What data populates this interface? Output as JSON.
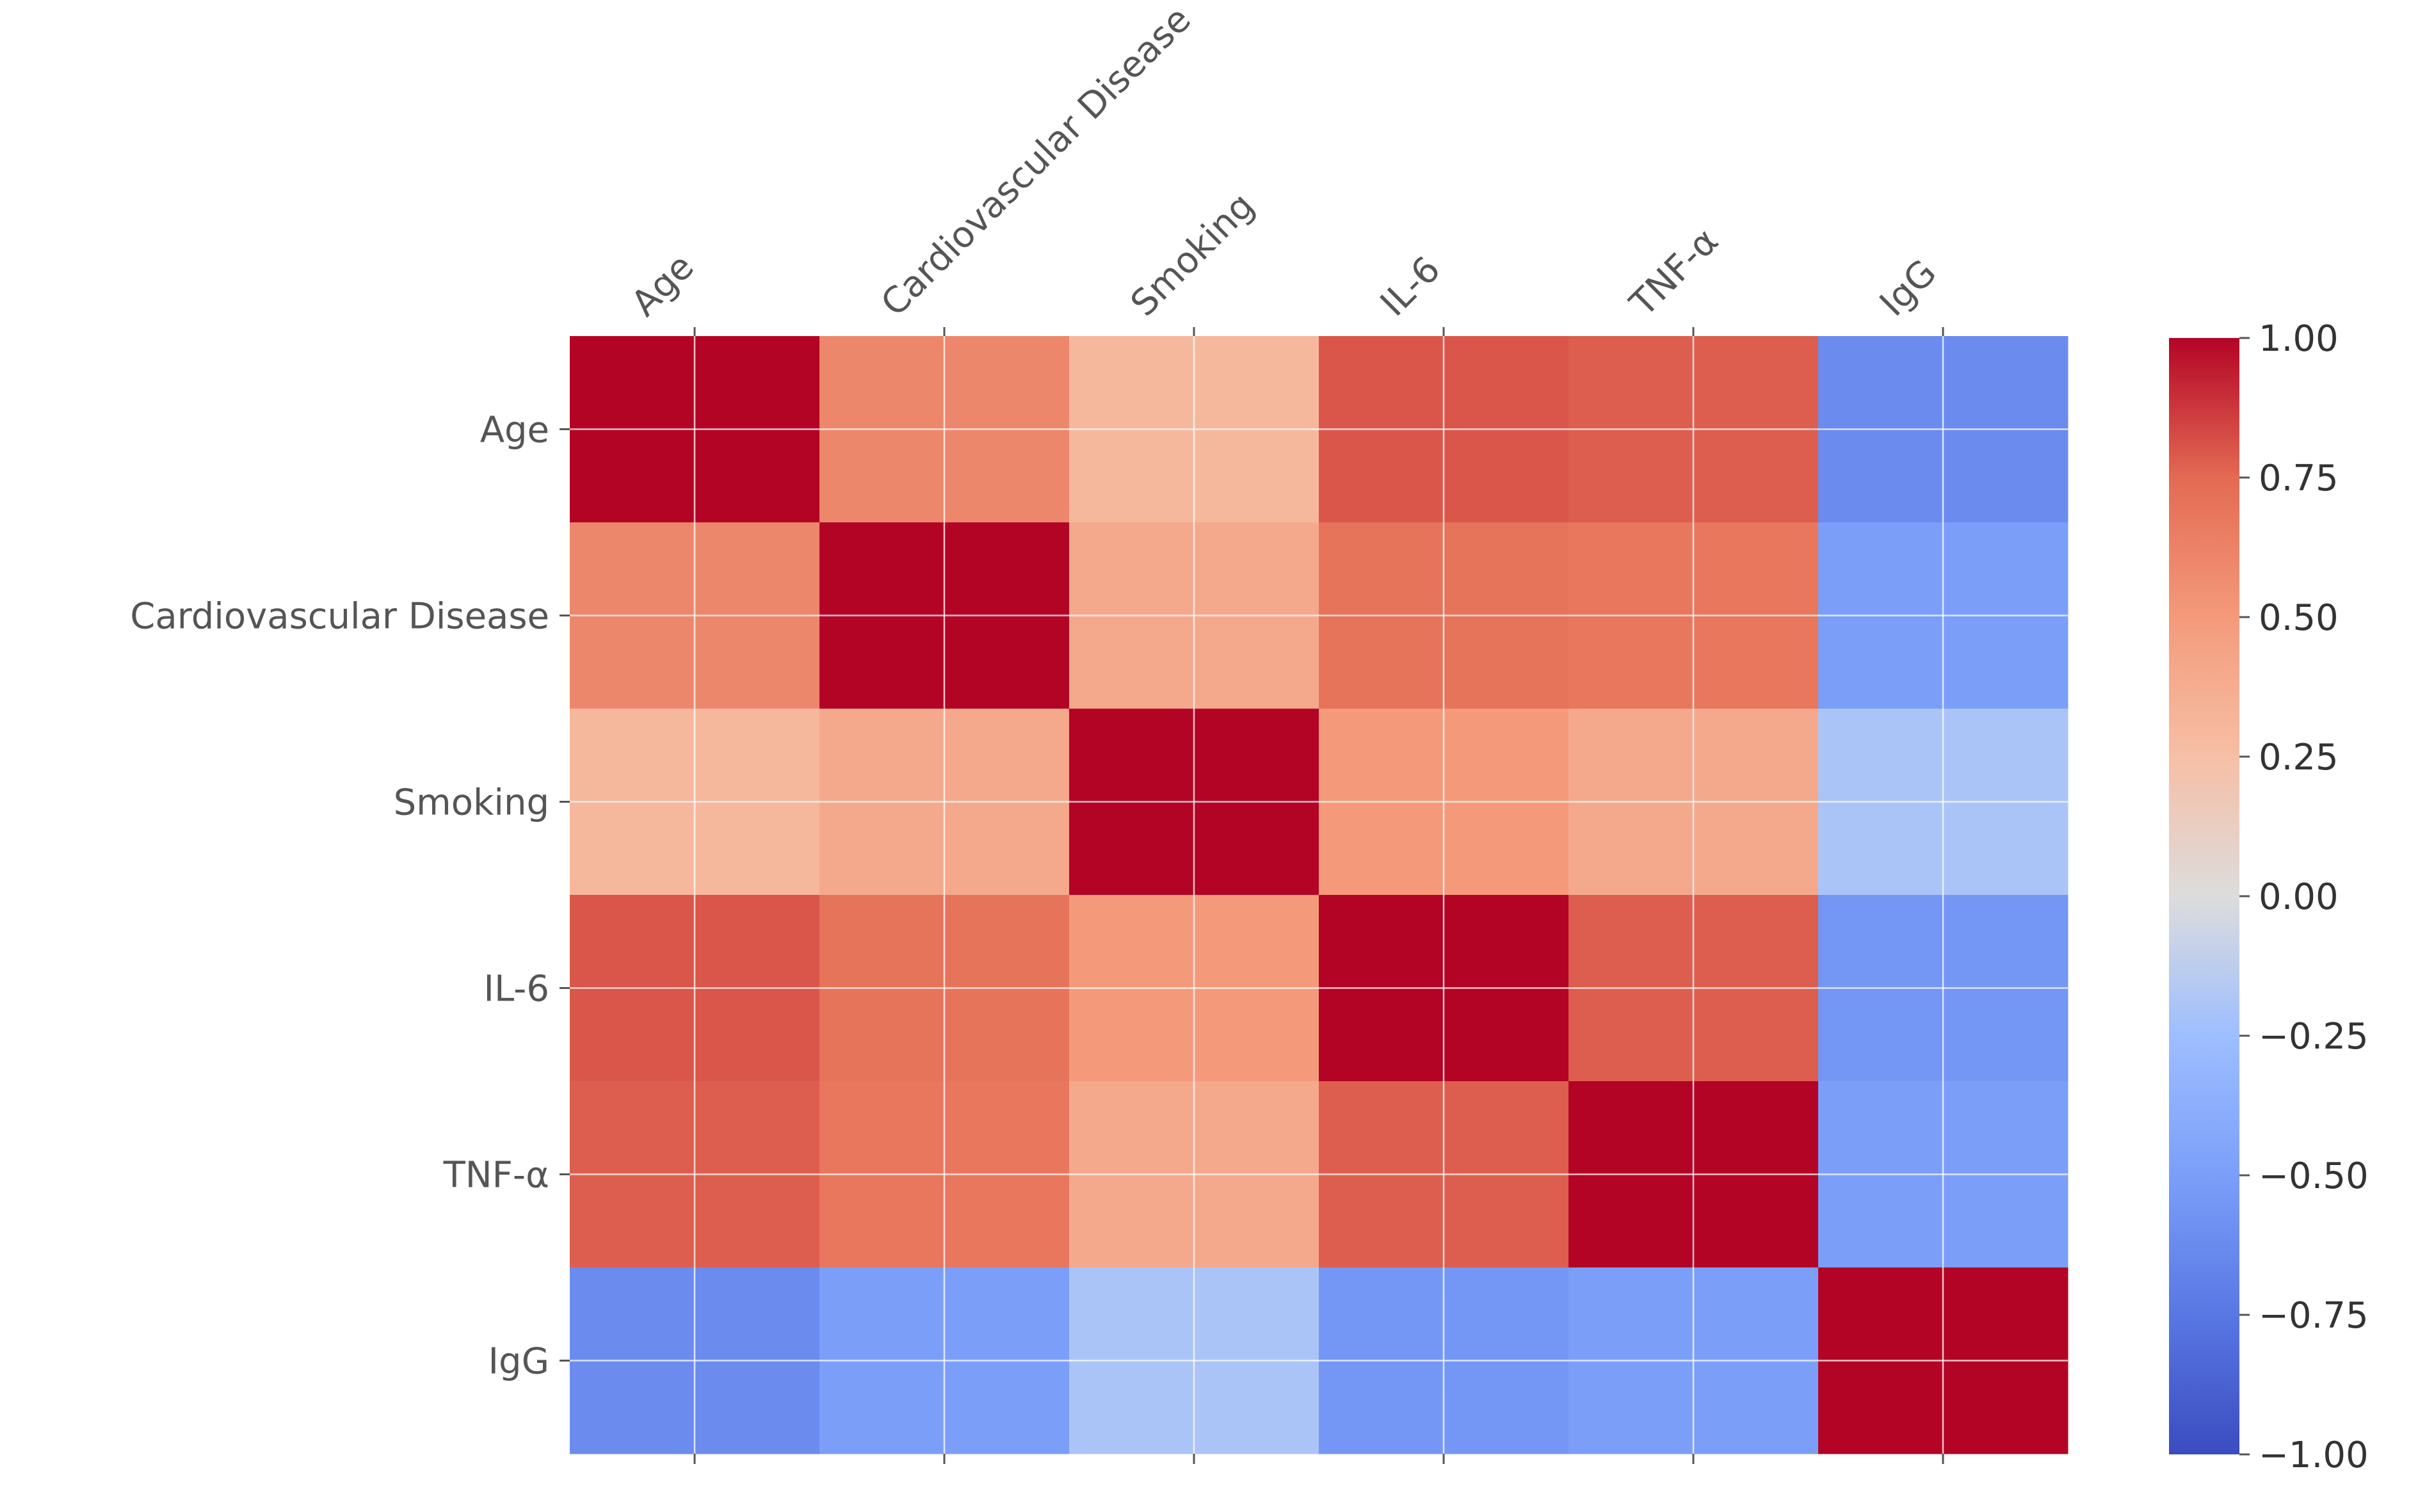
{
  "chart_data": {
    "type": "heatmap",
    "title": "",
    "xlabel": "",
    "ylabel": "",
    "row_labels": [
      "Age",
      "Cardiovascular Disease",
      "Smoking",
      "IL-6",
      "TNF-α",
      "IgG"
    ],
    "col_labels": [
      "Age",
      "Cardiovascular Disease",
      "Smoking",
      "IL-6",
      "TNF-α",
      "IgG"
    ],
    "values": [
      [
        1.0,
        0.6,
        0.3,
        0.8,
        0.78,
        -0.62
      ],
      [
        0.6,
        1.0,
        0.4,
        0.7,
        0.68,
        -0.5
      ],
      [
        0.3,
        0.4,
        1.0,
        0.5,
        0.4,
        -0.2
      ],
      [
        0.8,
        0.7,
        0.5,
        1.0,
        0.78,
        -0.55
      ],
      [
        0.78,
        0.68,
        0.4,
        0.78,
        1.0,
        -0.5
      ],
      [
        -0.62,
        -0.5,
        -0.2,
        -0.55,
        -0.5,
        1.0
      ]
    ],
    "vmin": -1.0,
    "vmax": 1.0,
    "colormap": "coolwarm",
    "grid": true,
    "colorbar": {
      "ticks": [
        1.0,
        0.75,
        0.5,
        0.25,
        0.0,
        -0.25,
        -0.5,
        -0.75,
        -1.0
      ],
      "tick_labels": [
        "1.00",
        "0.75",
        "0.50",
        "0.25",
        "0.00",
        "−0.25",
        "−0.50",
        "−0.75",
        "−1.00"
      ]
    }
  },
  "colors": {
    "grid": "#ffffff",
    "tick": "#555555",
    "background": "#ffffff"
  }
}
